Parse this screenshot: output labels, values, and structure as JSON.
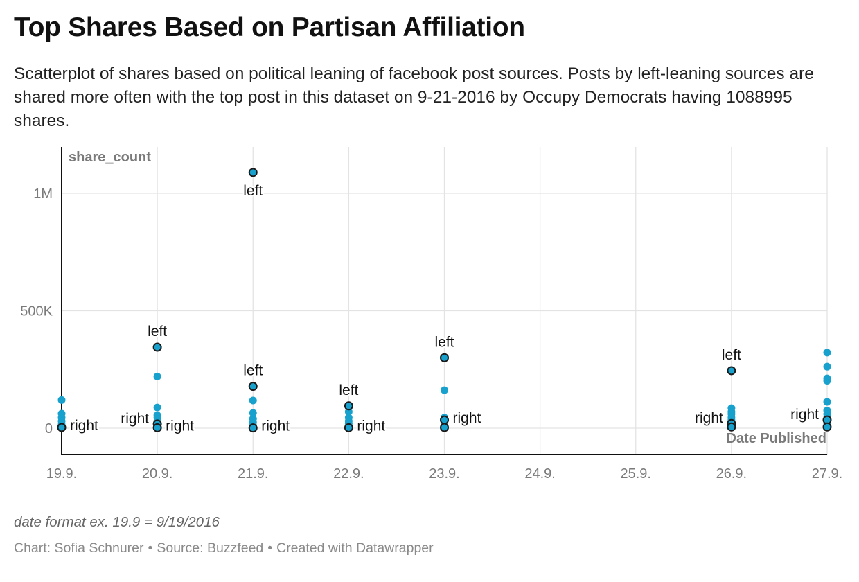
{
  "title": "Top Shares Based on Partisan Affiliation",
  "subtitle": "Scatterplot of shares based on political leaning of facebook post sources. Posts by left-leaning sources are shared more often with the top post in this dataset on 9-21-2016 by Occupy Democrats having 1088995 shares.",
  "note": "date format ex. 19.9 = 9/19/2016",
  "footer": {
    "chart_by": "Chart: Sofia Schnurer",
    "source": "Source: Buzzfeed",
    "created_with": "Created with Datawrapper",
    "separator": "•"
  },
  "colors": {
    "point": "#18a1cd",
    "highlight_stroke": "#1a1a1a",
    "grid": "#e3e3e3",
    "axis": "#111111",
    "tick_label": "#7a7a7a",
    "axis_title": "#7a7a7a"
  },
  "chart_data": {
    "type": "scatter",
    "xlabel": "Date Published",
    "ylabel": "share_count",
    "xlim": [
      19.9,
      27.9
    ],
    "ylim": [
      -115000,
      1200000
    ],
    "x_ticks": [
      19.9,
      20.9,
      21.9,
      22.9,
      23.9,
      24.9,
      25.9,
      26.9,
      27.9
    ],
    "x_tick_labels": [
      "19.9.",
      "20.9.",
      "21.9.",
      "22.9.",
      "23.9.",
      "24.9.",
      "25.9.",
      "26.9.",
      "27.9."
    ],
    "y_ticks": [
      0,
      500000,
      1000000
    ],
    "y_tick_labels": [
      "0",
      "500K",
      "1M"
    ],
    "grid": true,
    "points": [
      {
        "x": 19.9,
        "y": 120000
      },
      {
        "x": 19.9,
        "y": 62000
      },
      {
        "x": 19.9,
        "y": 45000
      },
      {
        "x": 19.9,
        "y": 30000
      },
      {
        "x": 19.9,
        "y": 15000
      },
      {
        "x": 19.9,
        "y": 8000
      },
      {
        "x": 20.9,
        "y": 220000
      },
      {
        "x": 20.9,
        "y": 88000
      },
      {
        "x": 20.9,
        "y": 55000
      },
      {
        "x": 20.9,
        "y": 45000
      },
      {
        "x": 20.9,
        "y": 30000
      },
      {
        "x": 20.9,
        "y": 18000
      },
      {
        "x": 21.9,
        "y": 118000
      },
      {
        "x": 21.9,
        "y": 65000
      },
      {
        "x": 21.9,
        "y": 40000
      },
      {
        "x": 21.9,
        "y": 25000
      },
      {
        "x": 21.9,
        "y": 12000
      },
      {
        "x": 22.9,
        "y": 70000
      },
      {
        "x": 22.9,
        "y": 45000
      },
      {
        "x": 22.9,
        "y": 30000
      },
      {
        "x": 22.9,
        "y": 20000
      },
      {
        "x": 22.9,
        "y": 10000
      },
      {
        "x": 23.9,
        "y": 162000
      },
      {
        "x": 23.9,
        "y": 45000
      },
      {
        "x": 23.9,
        "y": 30000
      },
      {
        "x": 23.9,
        "y": 20000
      },
      {
        "x": 26.9,
        "y": 85000
      },
      {
        "x": 26.9,
        "y": 70000
      },
      {
        "x": 26.9,
        "y": 60000
      },
      {
        "x": 26.9,
        "y": 45000
      },
      {
        "x": 26.9,
        "y": 35000
      },
      {
        "x": 26.9,
        "y": 25000
      },
      {
        "x": 27.9,
        "y": 322000
      },
      {
        "x": 27.9,
        "y": 262000
      },
      {
        "x": 27.9,
        "y": 212000
      },
      {
        "x": 27.9,
        "y": 202000
      },
      {
        "x": 27.9,
        "y": 112000
      },
      {
        "x": 27.9,
        "y": 75000
      },
      {
        "x": 27.9,
        "y": 60000
      },
      {
        "x": 27.9,
        "y": 45000
      },
      {
        "x": 27.9,
        "y": 20000
      }
    ],
    "labeled_points": [
      {
        "x": 21.9,
        "y": 1088995,
        "label": "left",
        "label_pos": "below"
      },
      {
        "x": 20.9,
        "y": 345000,
        "label": "left",
        "label_pos": "above"
      },
      {
        "x": 21.9,
        "y": 178000,
        "label": "left",
        "label_pos": "above"
      },
      {
        "x": 22.9,
        "y": 95000,
        "label": "left",
        "label_pos": "above"
      },
      {
        "x": 23.9,
        "y": 300000,
        "label": "left",
        "label_pos": "above"
      },
      {
        "x": 26.9,
        "y": 245000,
        "label": "left",
        "label_pos": "above"
      },
      {
        "x": 19.9,
        "y": 3000,
        "label": "right",
        "label_pos": "right"
      },
      {
        "x": 20.9,
        "y": 18000,
        "label": "right",
        "label_pos": "left"
      },
      {
        "x": 20.9,
        "y": 2000,
        "label": "right",
        "label_pos": "right"
      },
      {
        "x": 21.9,
        "y": 1000,
        "label": "right",
        "label_pos": "right"
      },
      {
        "x": 22.9,
        "y": 2000,
        "label": "right",
        "label_pos": "right"
      },
      {
        "x": 23.9,
        "y": 35000,
        "label": "right",
        "label_pos": "right"
      },
      {
        "x": 23.9,
        "y": 3000,
        "label": "",
        "label_pos": "right"
      },
      {
        "x": 26.9,
        "y": 20000,
        "label": "right",
        "label_pos": "left"
      },
      {
        "x": 26.9,
        "y": 5000,
        "label": "",
        "label_pos": "left"
      },
      {
        "x": 27.9,
        "y": 35000,
        "label": "right",
        "label_pos": "left"
      },
      {
        "x": 27.9,
        "y": 5000,
        "label": "",
        "label_pos": "left"
      }
    ]
  }
}
